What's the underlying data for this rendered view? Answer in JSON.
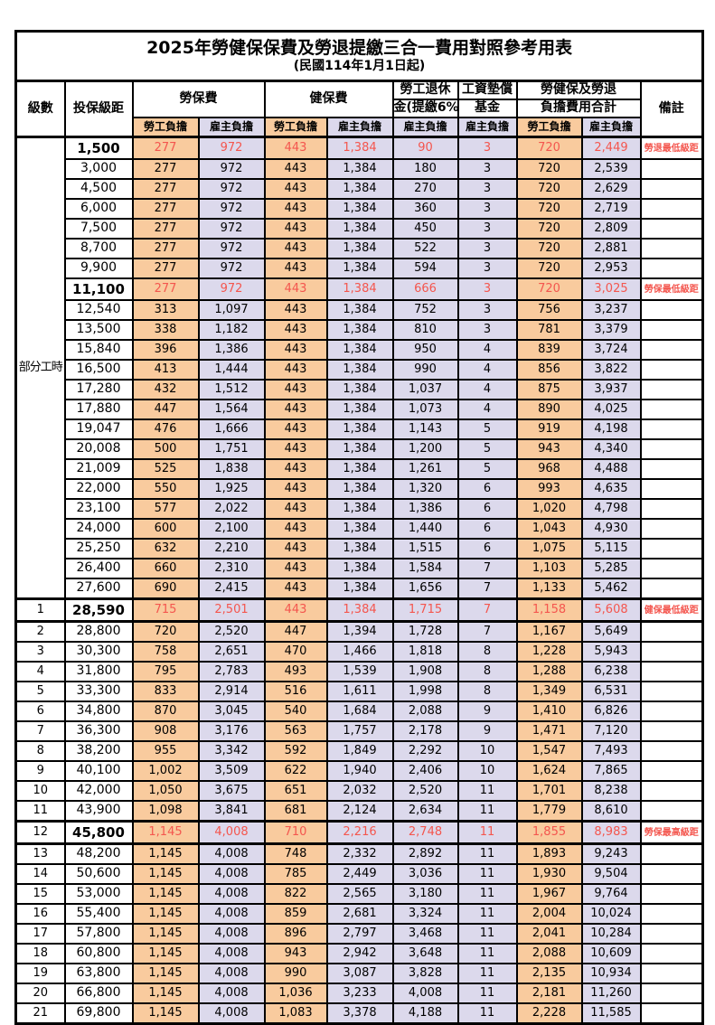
{
  "title": "2025年勞健保保費及勞退提繳三合一費用對照參考用表",
  "subtitle": "(民國114年1月1日起)",
  "header": {
    "level": "級數",
    "bracket": "投保級距",
    "labor_fee": "勞保費",
    "health_fee": "健保費",
    "pension_line1": "勞工退休",
    "pension_line2": "金(提繳6%)",
    "wage_fund_line1": "工資墊償",
    "wage_fund_line2": "基金",
    "total_line1": "勞健保及勞退",
    "total_line2": "負擔費用合計",
    "note": "備註",
    "employee_share": "勞工負擔",
    "employer_share": "雇主負擔"
  },
  "colors": {
    "employee_bg": "#F9CB9E",
    "employer_bg": "#DCD9EC",
    "highlight_text": "#F4564E"
  },
  "part_time_label": "部分工時",
  "part_time_rowspan": 23,
  "rows": [
    {
      "level": "",
      "bracket": "1,500",
      "values": [
        "277",
        "972",
        "443",
        "1,384",
        "90",
        "3",
        "720",
        "2,449"
      ],
      "note": "勞退最低級距",
      "hl": true,
      "thick": false
    },
    {
      "level": "",
      "bracket": "3,000",
      "values": [
        "277",
        "972",
        "443",
        "1,384",
        "180",
        "3",
        "720",
        "2,539"
      ],
      "note": "",
      "hl": false,
      "thick": false
    },
    {
      "level": "",
      "bracket": "4,500",
      "values": [
        "277",
        "972",
        "443",
        "1,384",
        "270",
        "3",
        "720",
        "2,629"
      ],
      "note": "",
      "hl": false,
      "thick": false
    },
    {
      "level": "",
      "bracket": "6,000",
      "values": [
        "277",
        "972",
        "443",
        "1,384",
        "360",
        "3",
        "720",
        "2,719"
      ],
      "note": "",
      "hl": false,
      "thick": false
    },
    {
      "level": "",
      "bracket": "7,500",
      "values": [
        "277",
        "972",
        "443",
        "1,384",
        "450",
        "3",
        "720",
        "2,809"
      ],
      "note": "",
      "hl": false,
      "thick": false
    },
    {
      "level": "",
      "bracket": "8,700",
      "values": [
        "277",
        "972",
        "443",
        "1,384",
        "522",
        "3",
        "720",
        "2,881"
      ],
      "note": "",
      "hl": false,
      "thick": false
    },
    {
      "level": "",
      "bracket": "9,900",
      "values": [
        "277",
        "972",
        "443",
        "1,384",
        "594",
        "3",
        "720",
        "2,953"
      ],
      "note": "",
      "hl": false,
      "thick": false
    },
    {
      "level": "",
      "bracket": "11,100",
      "values": [
        "277",
        "972",
        "443",
        "1,384",
        "666",
        "3",
        "720",
        "3,025"
      ],
      "note": "勞保最低級距",
      "hl": true,
      "thick": false
    },
    {
      "level": "",
      "bracket": "12,540",
      "values": [
        "313",
        "1,097",
        "443",
        "1,384",
        "752",
        "3",
        "756",
        "3,237"
      ],
      "note": "",
      "hl": false,
      "thick": false
    },
    {
      "level": "",
      "bracket": "13,500",
      "values": [
        "338",
        "1,182",
        "443",
        "1,384",
        "810",
        "3",
        "781",
        "3,379"
      ],
      "note": "",
      "hl": false,
      "thick": false
    },
    {
      "level": "",
      "bracket": "15,840",
      "values": [
        "396",
        "1,386",
        "443",
        "1,384",
        "950",
        "4",
        "839",
        "3,724"
      ],
      "note": "",
      "hl": false,
      "thick": false
    },
    {
      "level": "",
      "bracket": "16,500",
      "values": [
        "413",
        "1,444",
        "443",
        "1,384",
        "990",
        "4",
        "856",
        "3,822"
      ],
      "note": "",
      "hl": false,
      "thick": false
    },
    {
      "level": "",
      "bracket": "17,280",
      "values": [
        "432",
        "1,512",
        "443",
        "1,384",
        "1,037",
        "4",
        "875",
        "3,937"
      ],
      "note": "",
      "hl": false,
      "thick": false
    },
    {
      "level": "",
      "bracket": "17,880",
      "values": [
        "447",
        "1,564",
        "443",
        "1,384",
        "1,073",
        "4",
        "890",
        "4,025"
      ],
      "note": "",
      "hl": false,
      "thick": false
    },
    {
      "level": "",
      "bracket": "19,047",
      "values": [
        "476",
        "1,666",
        "443",
        "1,384",
        "1,143",
        "5",
        "919",
        "4,198"
      ],
      "note": "",
      "hl": false,
      "thick": false
    },
    {
      "level": "",
      "bracket": "20,008",
      "values": [
        "500",
        "1,751",
        "443",
        "1,384",
        "1,200",
        "5",
        "943",
        "4,340"
      ],
      "note": "",
      "hl": false,
      "thick": false
    },
    {
      "level": "",
      "bracket": "21,009",
      "values": [
        "525",
        "1,838",
        "443",
        "1,384",
        "1,261",
        "5",
        "968",
        "4,488"
      ],
      "note": "",
      "hl": false,
      "thick": false
    },
    {
      "level": "",
      "bracket": "22,000",
      "values": [
        "550",
        "1,925",
        "443",
        "1,384",
        "1,320",
        "6",
        "993",
        "4,635"
      ],
      "note": "",
      "hl": false,
      "thick": false
    },
    {
      "level": "",
      "bracket": "23,100",
      "values": [
        "577",
        "2,022",
        "443",
        "1,384",
        "1,386",
        "6",
        "1,020",
        "4,798"
      ],
      "note": "",
      "hl": false,
      "thick": false
    },
    {
      "level": "",
      "bracket": "24,000",
      "values": [
        "600",
        "2,100",
        "443",
        "1,384",
        "1,440",
        "6",
        "1,043",
        "4,930"
      ],
      "note": "",
      "hl": false,
      "thick": false
    },
    {
      "level": "",
      "bracket": "25,250",
      "values": [
        "632",
        "2,210",
        "443",
        "1,384",
        "1,515",
        "6",
        "1,075",
        "5,115"
      ],
      "note": "",
      "hl": false,
      "thick": false
    },
    {
      "level": "",
      "bracket": "26,400",
      "values": [
        "660",
        "2,310",
        "443",
        "1,384",
        "1,584",
        "7",
        "1,103",
        "5,285"
      ],
      "note": "",
      "hl": false,
      "thick": false
    },
    {
      "level": "",
      "bracket": "27,600",
      "values": [
        "690",
        "2,415",
        "443",
        "1,384",
        "1,656",
        "7",
        "1,133",
        "5,462"
      ],
      "note": "",
      "hl": false,
      "thick": false
    },
    {
      "level": "1",
      "bracket": "28,590",
      "values": [
        "715",
        "2,501",
        "443",
        "1,384",
        "1,715",
        "7",
        "1,158",
        "5,608"
      ],
      "note": "健保最低級距",
      "hl": true,
      "thick": true
    },
    {
      "level": "2",
      "bracket": "28,800",
      "values": [
        "720",
        "2,520",
        "447",
        "1,394",
        "1,728",
        "7",
        "1,167",
        "5,649"
      ],
      "note": "",
      "hl": false,
      "thick": false
    },
    {
      "level": "3",
      "bracket": "30,300",
      "values": [
        "758",
        "2,651",
        "470",
        "1,466",
        "1,818",
        "8",
        "1,228",
        "5,943"
      ],
      "note": "",
      "hl": false,
      "thick": false
    },
    {
      "level": "4",
      "bracket": "31,800",
      "values": [
        "795",
        "2,783",
        "493",
        "1,539",
        "1,908",
        "8",
        "1,288",
        "6,238"
      ],
      "note": "",
      "hl": false,
      "thick": false
    },
    {
      "level": "5",
      "bracket": "33,300",
      "values": [
        "833",
        "2,914",
        "516",
        "1,611",
        "1,998",
        "8",
        "1,349",
        "6,531"
      ],
      "note": "",
      "hl": false,
      "thick": false
    },
    {
      "level": "6",
      "bracket": "34,800",
      "values": [
        "870",
        "3,045",
        "540",
        "1,684",
        "2,088",
        "9",
        "1,410",
        "6,826"
      ],
      "note": "",
      "hl": false,
      "thick": false
    },
    {
      "level": "7",
      "bracket": "36,300",
      "values": [
        "908",
        "3,176",
        "563",
        "1,757",
        "2,178",
        "9",
        "1,471",
        "7,120"
      ],
      "note": "",
      "hl": false,
      "thick": false
    },
    {
      "level": "8",
      "bracket": "38,200",
      "values": [
        "955",
        "3,342",
        "592",
        "1,849",
        "2,292",
        "10",
        "1,547",
        "7,493"
      ],
      "note": "",
      "hl": false,
      "thick": false
    },
    {
      "level": "9",
      "bracket": "40,100",
      "values": [
        "1,002",
        "3,509",
        "622",
        "1,940",
        "2,406",
        "10",
        "1,624",
        "7,865"
      ],
      "note": "",
      "hl": false,
      "thick": false
    },
    {
      "level": "10",
      "bracket": "42,000",
      "values": [
        "1,050",
        "3,675",
        "651",
        "2,032",
        "2,520",
        "11",
        "1,701",
        "8,238"
      ],
      "note": "",
      "hl": false,
      "thick": false
    },
    {
      "level": "11",
      "bracket": "43,900",
      "values": [
        "1,098",
        "3,841",
        "681",
        "2,124",
        "2,634",
        "11",
        "1,779",
        "8,610"
      ],
      "note": "",
      "hl": false,
      "thick": false
    },
    {
      "level": "12",
      "bracket": "45,800",
      "values": [
        "1,145",
        "4,008",
        "710",
        "2,216",
        "2,748",
        "11",
        "1,855",
        "8,983"
      ],
      "note": "勞保最高級距",
      "hl": true,
      "thick": true
    },
    {
      "level": "13",
      "bracket": "48,200",
      "values": [
        "1,145",
        "4,008",
        "748",
        "2,332",
        "2,892",
        "11",
        "1,893",
        "9,243"
      ],
      "note": "",
      "hl": false,
      "thick": false
    },
    {
      "level": "14",
      "bracket": "50,600",
      "values": [
        "1,145",
        "4,008",
        "785",
        "2,449",
        "3,036",
        "11",
        "1,930",
        "9,504"
      ],
      "note": "",
      "hl": false,
      "thick": false
    },
    {
      "level": "15",
      "bracket": "53,000",
      "values": [
        "1,145",
        "4,008",
        "822",
        "2,565",
        "3,180",
        "11",
        "1,967",
        "9,764"
      ],
      "note": "",
      "hl": false,
      "thick": false
    },
    {
      "level": "16",
      "bracket": "55,400",
      "values": [
        "1,145",
        "4,008",
        "859",
        "2,681",
        "3,324",
        "11",
        "2,004",
        "10,024"
      ],
      "note": "",
      "hl": false,
      "thick": false
    },
    {
      "level": "17",
      "bracket": "57,800",
      "values": [
        "1,145",
        "4,008",
        "896",
        "2,797",
        "3,468",
        "11",
        "2,041",
        "10,284"
      ],
      "note": "",
      "hl": false,
      "thick": false
    },
    {
      "level": "18",
      "bracket": "60,800",
      "values": [
        "1,145",
        "4,008",
        "943",
        "2,942",
        "3,648",
        "11",
        "2,088",
        "10,609"
      ],
      "note": "",
      "hl": false,
      "thick": false
    },
    {
      "level": "19",
      "bracket": "63,800",
      "values": [
        "1,145",
        "4,008",
        "990",
        "3,087",
        "3,828",
        "11",
        "2,135",
        "10,934"
      ],
      "note": "",
      "hl": false,
      "thick": false
    },
    {
      "level": "20",
      "bracket": "66,800",
      "values": [
        "1,145",
        "4,008",
        "1,036",
        "3,233",
        "4,008",
        "11",
        "2,181",
        "11,260"
      ],
      "note": "",
      "hl": false,
      "thick": false
    },
    {
      "level": "21",
      "bracket": "69,800",
      "values": [
        "1,145",
        "4,008",
        "1,083",
        "3,378",
        "4,188",
        "11",
        "2,228",
        "11,585"
      ],
      "note": "",
      "hl": false,
      "thick": false
    }
  ]
}
